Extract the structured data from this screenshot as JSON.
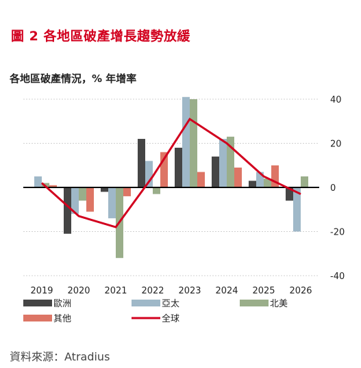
{
  "figure_title": "圖 2 各地區破產增長趨勢放緩",
  "source": "資料來源：Atradius",
  "colors": {
    "title": "#d2001e",
    "europe": "#454545",
    "asia_pacific": "#9fb8c8",
    "north_america": "#9aae8a",
    "others": "#dd7565",
    "global": "#d2001e"
  },
  "chart_data": {
    "type": "bar",
    "title": "各地區破產情況，% 年增率",
    "categories": [
      "2019",
      "2020",
      "2021",
      "2022",
      "2023",
      "2024",
      "2025",
      "2026"
    ],
    "ylim": [
      -40,
      40
    ],
    "yticks": [
      -40,
      -20,
      0,
      20,
      40
    ],
    "grid": true,
    "legend_position": "bottom",
    "series": [
      {
        "name": "歐洲",
        "kind": "bar",
        "values": [
          0,
          -21,
          -2,
          22,
          18,
          14,
          3,
          -6
        ]
      },
      {
        "name": "亞太",
        "kind": "bar",
        "values": [
          5,
          -12,
          -14,
          12,
          41,
          22,
          7,
          -20
        ]
      },
      {
        "name": "北美",
        "kind": "bar",
        "values": [
          2,
          -6,
          -32,
          -3,
          40,
          23,
          4,
          5
        ]
      },
      {
        "name": "其他",
        "kind": "bar",
        "values": [
          1,
          -11,
          -4,
          16,
          7,
          9,
          10,
          0
        ]
      },
      {
        "name": "全球",
        "kind": "line",
        "values": [
          2,
          -13,
          -18,
          5,
          31,
          20,
          5,
          -3
        ]
      }
    ]
  }
}
